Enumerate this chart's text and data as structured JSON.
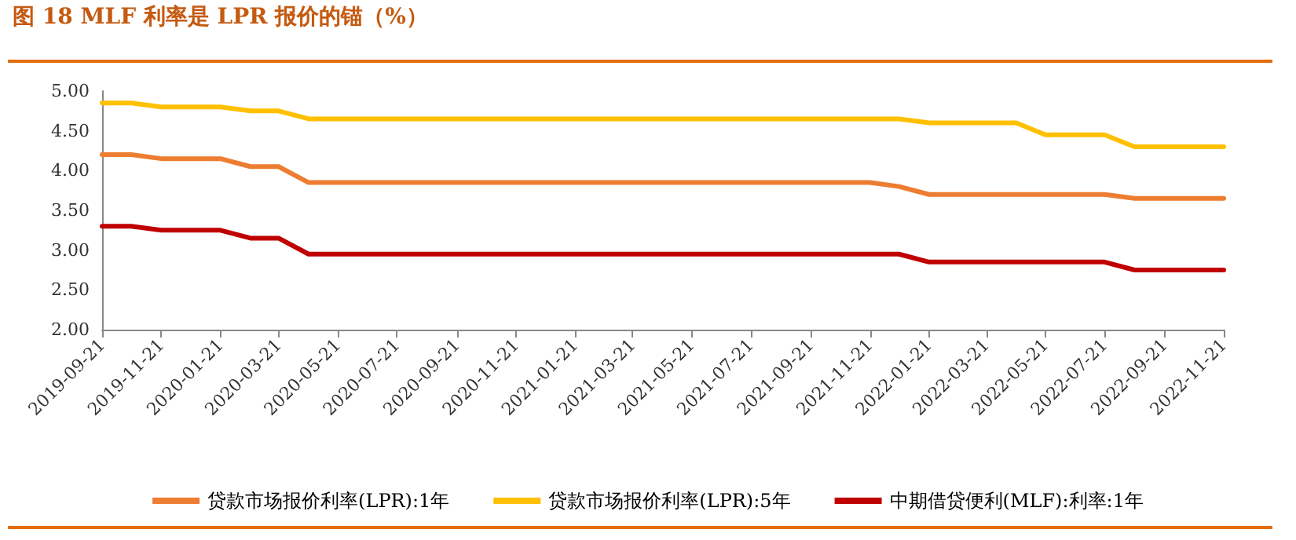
{
  "chart_data": {
    "type": "line",
    "title": "图 18   MLF 利率是 LPR 报价的锚（%）",
    "xlim": [
      "2019-09-21",
      "2022-11-21"
    ],
    "xticks": [
      "2019-09-21",
      "2019-11-21",
      "2020-01-21",
      "2020-03-21",
      "2020-05-21",
      "2020-07-21",
      "2020-09-21",
      "2020-11-21",
      "2021-01-21",
      "2021-03-21",
      "2021-05-21",
      "2021-07-21",
      "2021-09-21",
      "2021-11-21",
      "2022-01-21",
      "2022-03-21",
      "2022-05-21",
      "2022-07-21",
      "2022-09-21",
      "2022-11-21"
    ],
    "ylim": [
      2,
      5
    ],
    "yticks": [
      {
        "value": 2,
        "label": "2.00"
      },
      {
        "value": 2.5,
        "label": "2.50"
      },
      {
        "value": 3,
        "label": "3.00"
      },
      {
        "value": 3.5,
        "label": "3.50"
      },
      {
        "value": 4,
        "label": "4.00"
      },
      {
        "value": 4.5,
        "label": "4.50"
      },
      {
        "value": 5,
        "label": "5.00"
      }
    ],
    "grid": false,
    "legend": "bottom",
    "marker": "none",
    "line_style": "solid",
    "series": [
      {
        "name": "贷款市场报价利率(LPR):1年",
        "color": "#ed7d31",
        "x": [
          "2019-09-21",
          "2019-10-21",
          "2019-11-21",
          "2020-01-21",
          "2020-02-21",
          "2020-03-21",
          "2020-04-21",
          "2021-11-21",
          "2021-12-21",
          "2022-01-21",
          "2022-07-21",
          "2022-08-21",
          "2022-11-21"
        ],
        "values": [
          4.2,
          4.2,
          4.15,
          4.15,
          4.05,
          4.05,
          3.85,
          3.85,
          3.8,
          3.7,
          3.7,
          3.65,
          3.65
        ]
      },
      {
        "name": "贷款市场报价利率(LPR):5年",
        "color": "#ffc000",
        "x": [
          "2019-09-21",
          "2019-10-21",
          "2019-11-21",
          "2020-01-21",
          "2020-02-21",
          "2020-03-21",
          "2020-04-21",
          "2021-12-21",
          "2022-01-21",
          "2022-04-21",
          "2022-05-21",
          "2022-07-21",
          "2022-08-21",
          "2022-11-21"
        ],
        "values": [
          4.85,
          4.85,
          4.8,
          4.8,
          4.75,
          4.75,
          4.65,
          4.65,
          4.6,
          4.6,
          4.45,
          4.45,
          4.3,
          4.3
        ]
      },
      {
        "name": "中期借贷便利(MLF):利率:1年",
        "color": "#c00000",
        "x": [
          "2019-09-21",
          "2019-10-21",
          "2019-11-21",
          "2020-01-21",
          "2020-02-21",
          "2020-03-21",
          "2020-04-21",
          "2021-12-21",
          "2022-01-21",
          "2022-07-21",
          "2022-08-21",
          "2022-11-21"
        ],
        "values": [
          3.3,
          3.3,
          3.25,
          3.25,
          3.15,
          3.15,
          2.95,
          2.95,
          2.85,
          2.85,
          2.75,
          2.75
        ]
      }
    ]
  }
}
